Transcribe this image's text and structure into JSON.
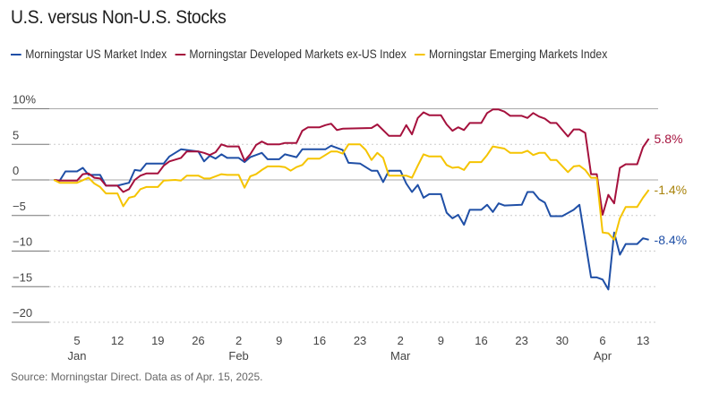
{
  "chart_data": {
    "type": "line",
    "title": "U.S. versus Non-U.S. Stocks",
    "source": "Source: Morningstar Direct. Data as of Apr. 15, 2025.",
    "ylim": [
      -20,
      10
    ],
    "y_ticks": [
      {
        "v": 10,
        "label": "10%"
      },
      {
        "v": 5,
        "label": "5"
      },
      {
        "v": 0,
        "label": "0"
      },
      {
        "v": -5,
        "label": "-5"
      },
      {
        "v": -10,
        "label": "-10"
      },
      {
        "v": -15,
        "label": "-15"
      },
      {
        "v": -20,
        "label": "-20"
      }
    ],
    "x_ticks": [
      {
        "date": "2025-01-05",
        "label": "5",
        "month": "Jan"
      },
      {
        "date": "2025-01-12",
        "label": "12"
      },
      {
        "date": "2025-01-19",
        "label": "19"
      },
      {
        "date": "2025-01-26",
        "label": "26"
      },
      {
        "date": "2025-02-02",
        "label": "2",
        "month": "Feb"
      },
      {
        "date": "2025-02-09",
        "label": "9"
      },
      {
        "date": "2025-02-16",
        "label": "16"
      },
      {
        "date": "2025-02-23",
        "label": "23"
      },
      {
        "date": "2025-03-02",
        "label": "2",
        "month": "Mar"
      },
      {
        "date": "2025-03-09",
        "label": "9"
      },
      {
        "date": "2025-03-16",
        "label": "16"
      },
      {
        "date": "2025-03-23",
        "label": "23"
      },
      {
        "date": "2025-03-30",
        "label": "30"
      },
      {
        "date": "2025-04-06",
        "label": "6",
        "month": "Apr"
      },
      {
        "date": "2025-04-13",
        "label": "13"
      }
    ],
    "grid": true,
    "legend": "top",
    "series": [
      {
        "name": "Morningstar US Market Index",
        "color": "#1f4fa6",
        "label_color": "#1f4fa6",
        "end_label": "-8.4%",
        "points": [
          [
            "2025-01-01",
            0
          ],
          [
            "2025-01-02",
            -0.1
          ],
          [
            "2025-01-03",
            1.2
          ],
          [
            "2025-01-05",
            1.2
          ],
          [
            "2025-01-06",
            1.7
          ],
          [
            "2025-01-07",
            0.7
          ],
          [
            "2025-01-09",
            0.7
          ],
          [
            "2025-01-10",
            -0.8
          ],
          [
            "2025-01-12",
            -0.8
          ],
          [
            "2025-01-14",
            -0.4
          ],
          [
            "2025-01-15",
            1.4
          ],
          [
            "2025-01-16",
            1.3
          ],
          [
            "2025-01-17",
            2.3
          ],
          [
            "2025-01-20",
            2.3
          ],
          [
            "2025-01-21",
            3.3
          ],
          [
            "2025-01-23",
            4.3
          ],
          [
            "2025-01-26",
            4.0
          ],
          [
            "2025-01-27",
            2.6
          ],
          [
            "2025-01-28",
            3.4
          ],
          [
            "2025-01-29",
            3.0
          ],
          [
            "2025-01-30",
            3.6
          ],
          [
            "2025-01-31",
            3.1
          ],
          [
            "2025-02-02",
            3.1
          ],
          [
            "2025-02-03",
            2.5
          ],
          [
            "2025-02-04",
            3.2
          ],
          [
            "2025-02-06",
            3.8
          ],
          [
            "2025-02-07",
            2.9
          ],
          [
            "2025-02-09",
            2.9
          ],
          [
            "2025-02-10",
            3.6
          ],
          [
            "2025-02-11",
            3.4
          ],
          [
            "2025-02-12",
            3.2
          ],
          [
            "2025-02-13",
            4.3
          ],
          [
            "2025-02-17",
            4.3
          ],
          [
            "2025-02-18",
            4.8
          ],
          [
            "2025-02-20",
            4.2
          ],
          [
            "2025-02-21",
            2.4
          ],
          [
            "2025-02-23",
            2.3
          ],
          [
            "2025-02-25",
            1.3
          ],
          [
            "2025-02-26",
            1.3
          ],
          [
            "2025-02-27",
            -0.3
          ],
          [
            "2025-02-28",
            1.3
          ],
          [
            "2025-03-02",
            1.3
          ],
          [
            "2025-03-03",
            -0.5
          ],
          [
            "2025-03-04",
            -1.7
          ],
          [
            "2025-03-05",
            -0.7
          ],
          [
            "2025-03-06",
            -2.5
          ],
          [
            "2025-03-07",
            -2.0
          ],
          [
            "2025-03-09",
            -2.0
          ],
          [
            "2025-03-10",
            -4.6
          ],
          [
            "2025-03-11",
            -5.4
          ],
          [
            "2025-03-12",
            -4.9
          ],
          [
            "2025-03-13",
            -6.3
          ],
          [
            "2025-03-14",
            -4.2
          ],
          [
            "2025-03-16",
            -4.2
          ],
          [
            "2025-03-17",
            -3.5
          ],
          [
            "2025-03-18",
            -4.5
          ],
          [
            "2025-03-19",
            -3.3
          ],
          [
            "2025-03-20",
            -3.6
          ],
          [
            "2025-03-23",
            -3.5
          ],
          [
            "2025-03-24",
            -1.7
          ],
          [
            "2025-03-25",
            -1.7
          ],
          [
            "2025-03-26",
            -2.7
          ],
          [
            "2025-03-27",
            -3.2
          ],
          [
            "2025-03-28",
            -5.1
          ],
          [
            "2025-03-30",
            -5.1
          ],
          [
            "2025-04-01",
            -4.2
          ],
          [
            "2025-04-02",
            -3.5
          ],
          [
            "2025-04-04",
            -13.7
          ],
          [
            "2025-04-05",
            -13.7
          ],
          [
            "2025-04-06",
            -14.0
          ],
          [
            "2025-04-07",
            -15.4
          ],
          [
            "2025-04-08",
            -7.4
          ],
          [
            "2025-04-09",
            -10.5
          ],
          [
            "2025-04-10",
            -9.0
          ],
          [
            "2025-04-12",
            -9.0
          ],
          [
            "2025-04-13",
            -8.2
          ],
          [
            "2025-04-14",
            -8.4
          ]
        ]
      },
      {
        "name": "Morningstar Developed Markets ex-US Index",
        "color": "#a5113d",
        "label_color": "#a5113d",
        "end_label": "5.8%",
        "points": [
          [
            "2025-01-01",
            0
          ],
          [
            "2025-01-02",
            -0.1
          ],
          [
            "2025-01-05",
            -0.1
          ],
          [
            "2025-01-06",
            0.8
          ],
          [
            "2025-01-07",
            0.9
          ],
          [
            "2025-01-08",
            0.3
          ],
          [
            "2025-01-09",
            0.2
          ],
          [
            "2025-01-10",
            -0.8
          ],
          [
            "2025-01-12",
            -0.8
          ],
          [
            "2025-01-13",
            -1.7
          ],
          [
            "2025-01-14",
            -1.3
          ],
          [
            "2025-01-15",
            0
          ],
          [
            "2025-01-16",
            0.6
          ],
          [
            "2025-01-17",
            0.9
          ],
          [
            "2025-01-19",
            0.9
          ],
          [
            "2025-01-20",
            2.0
          ],
          [
            "2025-01-21",
            2.6
          ],
          [
            "2025-01-23",
            3.1
          ],
          [
            "2025-01-24",
            4.0
          ],
          [
            "2025-01-26",
            4.0
          ],
          [
            "2025-01-27",
            3.8
          ],
          [
            "2025-01-28",
            3.5
          ],
          [
            "2025-01-29",
            3.9
          ],
          [
            "2025-01-30",
            5.0
          ],
          [
            "2025-01-31",
            4.7
          ],
          [
            "2025-02-02",
            4.7
          ],
          [
            "2025-02-03",
            2.7
          ],
          [
            "2025-02-04",
            3.6
          ],
          [
            "2025-02-05",
            4.9
          ],
          [
            "2025-02-06",
            5.4
          ],
          [
            "2025-02-07",
            5.0
          ],
          [
            "2025-02-09",
            5.0
          ],
          [
            "2025-02-10",
            5.2
          ],
          [
            "2025-02-12",
            5.2
          ],
          [
            "2025-02-13",
            6.9
          ],
          [
            "2025-02-14",
            7.4
          ],
          [
            "2025-02-16",
            7.4
          ],
          [
            "2025-02-17",
            7.7
          ],
          [
            "2025-02-18",
            7.9
          ],
          [
            "2025-02-19",
            7.0
          ],
          [
            "2025-02-20",
            7.2
          ],
          [
            "2025-02-25",
            7.3
          ],
          [
            "2025-02-26",
            7.8
          ],
          [
            "2025-02-28",
            6.2
          ],
          [
            "2025-03-02",
            6.2
          ],
          [
            "2025-03-03",
            7.7
          ],
          [
            "2025-03-04",
            6.4
          ],
          [
            "2025-03-05",
            8.7
          ],
          [
            "2025-03-06",
            9.5
          ],
          [
            "2025-03-07",
            9.1
          ],
          [
            "2025-03-09",
            9.1
          ],
          [
            "2025-03-10",
            7.8
          ],
          [
            "2025-03-11",
            6.9
          ],
          [
            "2025-03-12",
            7.4
          ],
          [
            "2025-03-13",
            7.0
          ],
          [
            "2025-03-14",
            8.0
          ],
          [
            "2025-03-16",
            8.0
          ],
          [
            "2025-03-17",
            9.4
          ],
          [
            "2025-03-18",
            9.9
          ],
          [
            "2025-03-19",
            9.9
          ],
          [
            "2025-03-20",
            9.6
          ],
          [
            "2025-03-21",
            9.0
          ],
          [
            "2025-03-23",
            9.0
          ],
          [
            "2025-03-24",
            8.7
          ],
          [
            "2025-03-25",
            9.4
          ],
          [
            "2025-03-26",
            8.9
          ],
          [
            "2025-03-27",
            8.6
          ],
          [
            "2025-03-28",
            8.0
          ],
          [
            "2025-03-29",
            8.0
          ],
          [
            "2025-03-31",
            6.1
          ],
          [
            "2025-04-01",
            7.1
          ],
          [
            "2025-04-02",
            7.1
          ],
          [
            "2025-04-03",
            6.6
          ],
          [
            "2025-04-04",
            0.8
          ],
          [
            "2025-04-05",
            0.8
          ],
          [
            "2025-04-06",
            -4.9
          ],
          [
            "2025-04-07",
            -2.1
          ],
          [
            "2025-04-08",
            -3.3
          ],
          [
            "2025-04-09",
            1.7
          ],
          [
            "2025-04-10",
            2.2
          ],
          [
            "2025-04-12",
            2.2
          ],
          [
            "2025-04-13",
            4.6
          ],
          [
            "2025-04-14",
            5.8
          ]
        ]
      },
      {
        "name": "Morningstar Emerging Markets Index",
        "color": "#f5c400",
        "label_color": "#a8820a",
        "end_label": "-1.4%",
        "points": [
          [
            "2025-01-01",
            0
          ],
          [
            "2025-01-02",
            -0.4
          ],
          [
            "2025-01-05",
            -0.4
          ],
          [
            "2025-01-07",
            0.3
          ],
          [
            "2025-01-08",
            -0.5
          ],
          [
            "2025-01-09",
            -1.0
          ],
          [
            "2025-01-10",
            -1.9
          ],
          [
            "2025-01-12",
            -1.9
          ],
          [
            "2025-01-13",
            -3.7
          ],
          [
            "2025-01-14",
            -2.5
          ],
          [
            "2025-01-15",
            -2.3
          ],
          [
            "2025-01-16",
            -1.3
          ],
          [
            "2025-01-17",
            -1.0
          ],
          [
            "2025-01-19",
            -1.0
          ],
          [
            "2025-01-20",
            -0.1
          ],
          [
            "2025-01-22",
            0
          ],
          [
            "2025-01-23",
            -0.1
          ],
          [
            "2025-01-24",
            0.6
          ],
          [
            "2025-01-26",
            0.6
          ],
          [
            "2025-01-27",
            0.2
          ],
          [
            "2025-01-28",
            0.2
          ],
          [
            "2025-01-30",
            0.8
          ],
          [
            "2025-01-31",
            0.7
          ],
          [
            "2025-02-02",
            0.7
          ],
          [
            "2025-02-03",
            -1.1
          ],
          [
            "2025-02-04",
            0.5
          ],
          [
            "2025-02-05",
            0.8
          ],
          [
            "2025-02-06",
            1.4
          ],
          [
            "2025-02-07",
            1.9
          ],
          [
            "2025-02-09",
            1.9
          ],
          [
            "2025-02-10",
            1.8
          ],
          [
            "2025-02-11",
            1.3
          ],
          [
            "2025-02-12",
            1.8
          ],
          [
            "2025-02-13",
            2.1
          ],
          [
            "2025-02-14",
            3.0
          ],
          [
            "2025-02-16",
            3.0
          ],
          [
            "2025-02-17",
            3.5
          ],
          [
            "2025-02-18",
            4.0
          ],
          [
            "2025-02-19",
            4.0
          ],
          [
            "2025-02-20",
            3.7
          ],
          [
            "2025-02-21",
            5.0
          ],
          [
            "2025-02-23",
            5.0
          ],
          [
            "2025-02-24",
            4.2
          ],
          [
            "2025-02-25",
            2.8
          ],
          [
            "2025-02-26",
            3.8
          ],
          [
            "2025-02-27",
            3.1
          ],
          [
            "2025-02-28",
            0.6
          ],
          [
            "2025-03-03",
            0.6
          ],
          [
            "2025-03-04",
            0.3
          ],
          [
            "2025-03-05",
            2.0
          ],
          [
            "2025-03-06",
            3.6
          ],
          [
            "2025-03-07",
            3.3
          ],
          [
            "2025-03-09",
            3.3
          ],
          [
            "2025-03-10",
            2.1
          ],
          [
            "2025-03-11",
            1.7
          ],
          [
            "2025-03-12",
            1.8
          ],
          [
            "2025-03-13",
            1.4
          ],
          [
            "2025-03-14",
            2.5
          ],
          [
            "2025-03-16",
            2.5
          ],
          [
            "2025-03-17",
            3.5
          ],
          [
            "2025-03-18",
            4.7
          ],
          [
            "2025-03-20",
            4.4
          ],
          [
            "2025-03-21",
            3.8
          ],
          [
            "2025-03-23",
            3.8
          ],
          [
            "2025-03-24",
            4.1
          ],
          [
            "2025-03-25",
            3.5
          ],
          [
            "2025-03-26",
            3.8
          ],
          [
            "2025-03-27",
            3.8
          ],
          [
            "2025-03-28",
            2.8
          ],
          [
            "2025-03-29",
            2.8
          ],
          [
            "2025-03-31",
            1.1
          ],
          [
            "2025-04-01",
            1.9
          ],
          [
            "2025-04-02",
            2.0
          ],
          [
            "2025-04-03",
            1.4
          ],
          [
            "2025-04-04",
            0.3
          ],
          [
            "2025-04-05",
            0.3
          ],
          [
            "2025-04-06",
            -7.4
          ],
          [
            "2025-04-07",
            -7.5
          ],
          [
            "2025-04-08",
            -8.4
          ],
          [
            "2025-04-09",
            -5.4
          ],
          [
            "2025-04-10",
            -3.8
          ],
          [
            "2025-04-12",
            -3.8
          ],
          [
            "2025-04-13",
            -2.5
          ],
          [
            "2025-04-14",
            -1.4
          ]
        ]
      }
    ]
  }
}
